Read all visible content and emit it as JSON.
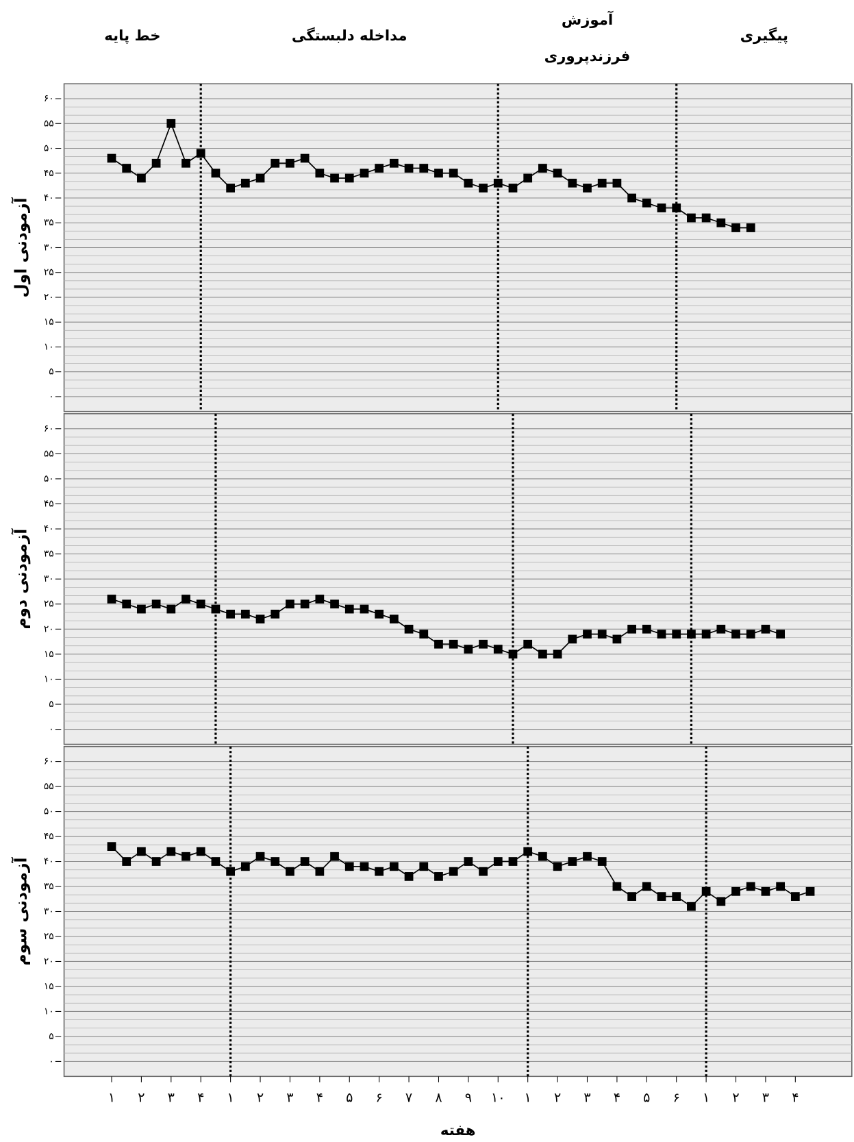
{
  "chart_data": [
    {
      "type": "line",
      "y_label": "آزمودنی اول",
      "phases": [
        [
          "خط پایه"
        ],
        [
          "مداخله دلبستگی"
        ],
        [
          "آموزش",
          "فرزندپروری"
        ],
        [
          "پیگیری"
        ]
      ],
      "x": [
        1,
        1.5,
        2,
        2.5,
        3,
        3.5,
        4,
        4.5,
        5,
        5.5,
        6,
        6.5,
        7,
        7.5,
        8,
        8.5,
        9,
        9.5,
        10,
        10.5,
        11,
        11.5,
        12,
        12.5,
        13,
        13.5,
        14,
        14.5,
        15,
        15.5,
        16,
        16.5,
        17,
        17.5,
        18,
        18.5,
        19,
        19.5,
        20,
        20.5,
        21,
        21.5,
        22,
        22.5
      ],
      "values": [
        48,
        46,
        44,
        47,
        55,
        47,
        49,
        45,
        42,
        43,
        44,
        47,
        47,
        48,
        45,
        44,
        44,
        45,
        46,
        47,
        46,
        46,
        45,
        45,
        43,
        42,
        43,
        42,
        44,
        46,
        45,
        43,
        42,
        43,
        43,
        40,
        39,
        38,
        38,
        36,
        36,
        35,
        34,
        34
      ],
      "color": "#000000",
      "phase_lines": [
        4,
        14,
        20
      ],
      "xlim": [
        -0.6,
        25.9
      ],
      "ylim": [
        -3,
        63
      ],
      "yticks": [
        {
          "value": 0,
          "label": "۰"
        },
        {
          "value": 5,
          "label": "۵"
        },
        {
          "value": 10,
          "label": "۱۰"
        },
        {
          "value": 15,
          "label": "۱۵"
        },
        {
          "value": 20,
          "label": "۲۰"
        },
        {
          "value": 25,
          "label": "۲۵"
        },
        {
          "value": 30,
          "label": "۳۰"
        },
        {
          "value": 35,
          "label": "۳۵"
        },
        {
          "value": 40,
          "label": "۴۰"
        },
        {
          "value": 45,
          "label": "۴۵"
        },
        {
          "value": 50,
          "label": "۵۰"
        },
        {
          "value": 55,
          "label": "۵۵"
        },
        {
          "value": 60,
          "label": "۶۰"
        }
      ],
      "grid": true
    },
    {
      "type": "line",
      "y_label": "آزمودنی دوم",
      "x": [
        1,
        1.5,
        2,
        2.5,
        3,
        3.5,
        4,
        4.5,
        5,
        5.5,
        6,
        6.5,
        7,
        7.5,
        8,
        8.5,
        9,
        9.5,
        10,
        10.5,
        11,
        11.5,
        12,
        12.5,
        13,
        13.5,
        14,
        14.5,
        15,
        15.5,
        16,
        16.5,
        17,
        17.5,
        18,
        18.5,
        19,
        19.5,
        20,
        20.5,
        21,
        21.5,
        22,
        22.5,
        23,
        23.5
      ],
      "values": [
        26,
        25,
        24,
        25,
        24,
        26,
        25,
        24,
        23,
        23,
        22,
        23,
        25,
        25,
        26,
        25,
        24,
        24,
        23,
        22,
        20,
        19,
        17,
        17,
        16,
        17,
        16,
        15,
        17,
        15,
        15,
        18,
        19,
        19,
        18,
        20,
        20,
        19,
        19,
        19,
        19,
        20,
        19,
        19,
        20,
        19
      ],
      "color": "#000000",
      "phase_lines": [
        4.5,
        14.5,
        20.5
      ],
      "xlim": [
        -0.6,
        25.9
      ],
      "ylim": [
        -3,
        63
      ],
      "yticks": [
        {
          "value": 0,
          "label": "۰"
        },
        {
          "value": 5,
          "label": "۵"
        },
        {
          "value": 10,
          "label": "۱۰"
        },
        {
          "value": 15,
          "label": "۱۵"
        },
        {
          "value": 20,
          "label": "۲۰"
        },
        {
          "value": 25,
          "label": "۲۵"
        },
        {
          "value": 30,
          "label": "۳۰"
        },
        {
          "value": 35,
          "label": "۳۵"
        },
        {
          "value": 40,
          "label": "۴۰"
        },
        {
          "value": 45,
          "label": "۴۵"
        },
        {
          "value": 50,
          "label": "۵۰"
        },
        {
          "value": 55,
          "label": "۵۵"
        },
        {
          "value": 60,
          "label": "۶۰"
        }
      ],
      "grid": true
    },
    {
      "type": "line",
      "y_label": "آزمودنی سوم",
      "x_label": "هفته",
      "x": [
        1,
        1.5,
        2,
        2.5,
        3,
        3.5,
        4,
        4.5,
        5,
        5.5,
        6,
        6.5,
        7,
        7.5,
        8,
        8.5,
        9,
        9.5,
        10,
        10.5,
        11,
        11.5,
        12,
        12.5,
        13,
        13.5,
        14,
        14.5,
        15,
        15.5,
        16,
        16.5,
        17,
        17.5,
        18,
        18.5,
        19,
        19.5,
        20,
        20.5,
        21,
        21.5,
        22,
        22.5,
        23,
        23.5,
        24,
        24.5
      ],
      "values": [
        43,
        40,
        42,
        40,
        42,
        41,
        42,
        40,
        38,
        39,
        41,
        40,
        38,
        40,
        38,
        41,
        39,
        39,
        38,
        39,
        37,
        39,
        37,
        38,
        40,
        38,
        40,
        40,
        42,
        41,
        39,
        40,
        41,
        40,
        35,
        33,
        35,
        33,
        33,
        31,
        34,
        32,
        34,
        35,
        34,
        35,
        33,
        34
      ],
      "color": "#000000",
      "phase_lines": [
        5,
        15,
        21
      ],
      "xlim": [
        -0.6,
        25.9
      ],
      "ylim": [
        -3,
        63
      ],
      "yticks": [
        {
          "value": 0,
          "label": "۰"
        },
        {
          "value": 5,
          "label": "۵"
        },
        {
          "value": 10,
          "label": "۱۰"
        },
        {
          "value": 15,
          "label": "۱۵"
        },
        {
          "value": 20,
          "label": "۲۰"
        },
        {
          "value": 25,
          "label": "۲۵"
        },
        {
          "value": 30,
          "label": "۳۰"
        },
        {
          "value": 35,
          "label": "۳۵"
        },
        {
          "value": 40,
          "label": "۴۰"
        },
        {
          "value": 45,
          "label": "۴۵"
        },
        {
          "value": 50,
          "label": "۵۰"
        },
        {
          "value": 55,
          "label": "۵۵"
        },
        {
          "value": 60,
          "label": "۶۰"
        }
      ],
      "xticks": [
        {
          "value": 1,
          "label": "۱"
        },
        {
          "value": 2,
          "label": "۲"
        },
        {
          "value": 3,
          "label": "۳"
        },
        {
          "value": 4,
          "label": "۴"
        },
        {
          "value": 5,
          "label": "۱"
        },
        {
          "value": 6,
          "label": "۲"
        },
        {
          "value": 7,
          "label": "۳"
        },
        {
          "value": 8,
          "label": "۴"
        },
        {
          "value": 9,
          "label": "۵"
        },
        {
          "value": 10,
          "label": "۶"
        },
        {
          "value": 11,
          "label": "۷"
        },
        {
          "value": 12,
          "label": "۸"
        },
        {
          "value": 13,
          "label": "۹"
        },
        {
          "value": 14,
          "label": "۱۰"
        },
        {
          "value": 15,
          "label": "۱"
        },
        {
          "value": 16,
          "label": "۲"
        },
        {
          "value": 17,
          "label": "۳"
        },
        {
          "value": 18,
          "label": "۴"
        },
        {
          "value": 19,
          "label": "۵"
        },
        {
          "value": 20,
          "label": "۶"
        },
        {
          "value": 21,
          "label": "۱"
        },
        {
          "value": 22,
          "label": "۲"
        },
        {
          "value": 23,
          "label": "۳"
        },
        {
          "value": 24,
          "label": "۴"
        }
      ],
      "grid": true
    }
  ]
}
